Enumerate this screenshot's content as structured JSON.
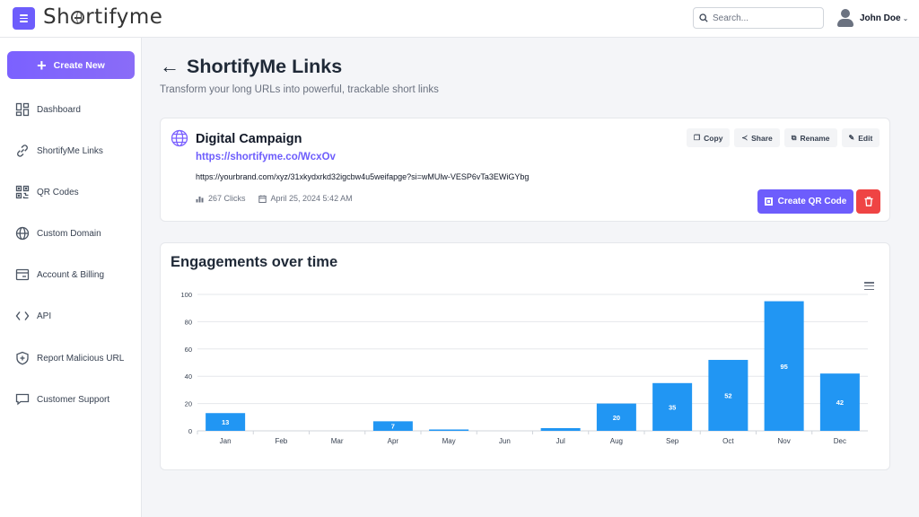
{
  "header": {
    "logo_text": "Shortifyme",
    "search_placeholder": "Search...",
    "user_name": "John Doe",
    "icons": [
      "hamburger-icon",
      "search-icon",
      "user-avatar-icon",
      "chevron-down-icon"
    ]
  },
  "sidebar": {
    "create_label": "Create New",
    "items": [
      {
        "label": "Dashboard",
        "icon": "dashboard-icon"
      },
      {
        "label": "ShortifyMe Links",
        "icon": "link-icon"
      },
      {
        "label": "QR Codes",
        "icon": "qr-code-icon"
      },
      {
        "label": "Custom Domain",
        "icon": "globe-icon"
      },
      {
        "label": "Account & Billing",
        "icon": "billing-icon"
      },
      {
        "label": "API",
        "icon": "code-icon"
      },
      {
        "label": "Report Malicious URL",
        "icon": "shield-plus-icon"
      },
      {
        "label": "Customer Support",
        "icon": "chat-icon"
      }
    ]
  },
  "page": {
    "title": "ShortifyMe Links",
    "subtitle": "Transform your long URLs into powerful, trackable short links"
  },
  "link": {
    "title": "Digital Campaign",
    "short_url": "https://shortifyme.co/WcxOv",
    "long_url": "https://yourbrand.com/xyz/31xkydxrkd32igcbw4u5weifapge?si=wMUlw-VESP6vTa3EWiGYbg",
    "clicks": "267 Clicks",
    "date": "April 25, 2024 5:42 AM",
    "actions": {
      "copy": "Copy",
      "share": "Share",
      "rename": "Rename",
      "edit": "Edit"
    },
    "create_qr_label": "Create QR Code"
  },
  "colors": {
    "accent": "#6d5dfc",
    "bar": "#2196f3",
    "danger": "#ef4444"
  },
  "chart_data": {
    "type": "bar",
    "title": "Engagements over time",
    "categories": [
      "Jan",
      "Feb",
      "Mar",
      "Apr",
      "May",
      "Jun",
      "Jul",
      "Aug",
      "Sep",
      "Oct",
      "Nov",
      "Dec"
    ],
    "values": [
      13,
      0,
      0,
      7,
      1,
      0,
      2,
      20,
      35,
      52,
      95,
      42
    ],
    "labels": [
      "13",
      "",
      "",
      "7",
      "",
      "",
      "",
      "20",
      "35",
      "52",
      "95",
      "42"
    ],
    "ylim": [
      0,
      100
    ],
    "yticks": [
      0,
      20,
      40,
      60,
      80,
      100
    ],
    "grid": true,
    "legend": "none"
  }
}
